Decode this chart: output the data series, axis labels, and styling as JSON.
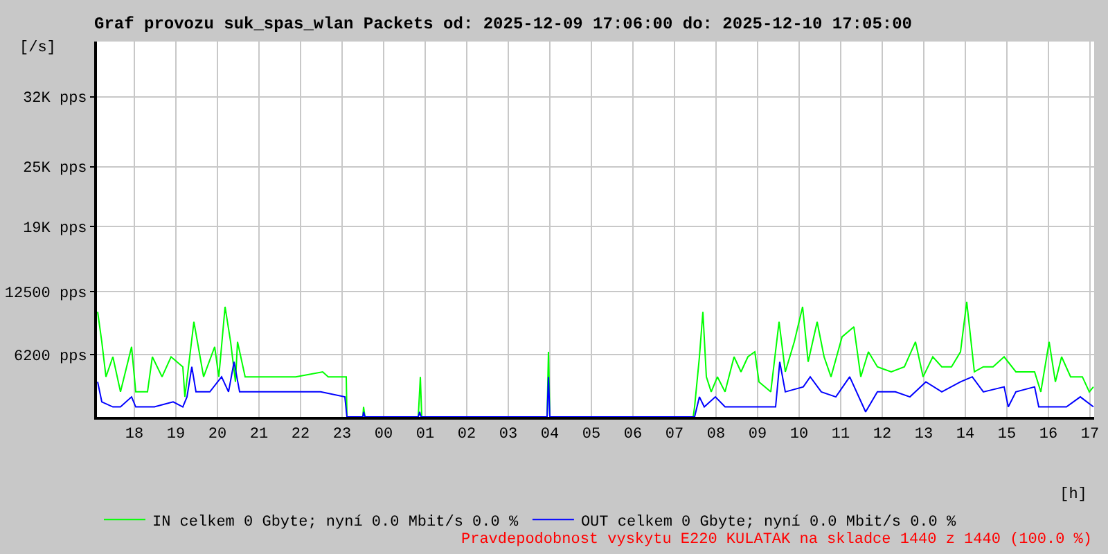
{
  "chart_data": {
    "type": "line",
    "title": "Graf provozu suk_spas_wlan Packets od: 2025-12-09 17:06:00 do: 2025-12-10 17:05:00",
    "xlabel": "[h]",
    "ylabel": "[/s]",
    "xlim": [
      "2025-12-09T17:06",
      "2025-12-10T17:06"
    ],
    "xticks": [
      {
        "value": "2025-12-09T18:00",
        "label": "18"
      },
      {
        "value": "2025-12-09T19:00",
        "label": "19"
      },
      {
        "value": "2025-12-09T20:00",
        "label": "20"
      },
      {
        "value": "2025-12-09T21:00",
        "label": "21"
      },
      {
        "value": "2025-12-09T22:00",
        "label": "22"
      },
      {
        "value": "2025-12-09T23:00",
        "label": "23"
      },
      {
        "value": "2025-12-10T00:00",
        "label": "00"
      },
      {
        "value": "2025-12-10T01:00",
        "label": "01"
      },
      {
        "value": "2025-12-10T02:00",
        "label": "02"
      },
      {
        "value": "2025-12-10T03:00",
        "label": "03"
      },
      {
        "value": "2025-12-10T04:00",
        "label": "04"
      },
      {
        "value": "2025-12-10T05:00",
        "label": "05"
      },
      {
        "value": "2025-12-10T06:00",
        "label": "06"
      },
      {
        "value": "2025-12-10T07:00",
        "label": "07"
      },
      {
        "value": "2025-12-10T08:00",
        "label": "08"
      },
      {
        "value": "2025-12-10T09:00",
        "label": "09"
      },
      {
        "value": "2025-12-10T10:00",
        "label": "10"
      },
      {
        "value": "2025-12-10T11:00",
        "label": "11"
      },
      {
        "value": "2025-12-10T12:00",
        "label": "12"
      },
      {
        "value": "2025-12-10T13:00",
        "label": "13"
      },
      {
        "value": "2025-12-10T14:00",
        "label": "14"
      },
      {
        "value": "2025-12-10T15:00",
        "label": "15"
      },
      {
        "value": "2025-12-10T16:00",
        "label": "16"
      },
      {
        "value": "2025-12-10T17:00",
        "label": "17"
      }
    ],
    "ylim": [
      0,
      37500
    ],
    "yticks": [
      {
        "value": 6200,
        "label": "6200 pps"
      },
      {
        "value": 12500,
        "label": "12500 pps"
      },
      {
        "value": 19000,
        "label": "19K pps"
      },
      {
        "value": 25000,
        "label": "25K pps"
      },
      {
        "value": 32000,
        "label": "32K pps"
      }
    ],
    "grid": true,
    "legend": "bottom",
    "marker": "none",
    "line_style": "solid",
    "series": [
      {
        "name": "IN celkem 0 Gbyte; nyní 0.0 Mbit/s 0.0 %",
        "color": "#00ff00",
        "x": [
          "2025-12-09T17:07",
          "2025-12-09T17:13",
          "2025-12-09T17:19",
          "2025-12-09T17:29",
          "2025-12-09T17:40",
          "2025-12-09T17:56",
          "2025-12-09T18:02",
          "2025-12-09T18:19",
          "2025-12-09T18:26",
          "2025-12-09T18:40",
          "2025-12-09T18:53",
          "2025-12-09T19:10",
          "2025-12-09T19:13",
          "2025-12-09T19:26",
          "2025-12-09T19:40",
          "2025-12-09T19:56",
          "2025-12-09T20:02",
          "2025-12-09T20:11",
          "2025-12-09T20:19",
          "2025-12-09T20:26",
          "2025-12-09T20:29",
          "2025-12-09T20:40",
          "2025-12-09T20:59",
          "2025-12-09T21:26",
          "2025-12-09T21:53",
          "2025-12-09T22:32",
          "2025-12-09T22:40",
          "2025-12-09T23:06",
          "2025-12-09T23:07",
          "2025-12-09T23:30",
          "2025-12-09T23:31",
          "2025-12-09T23:33",
          "2025-12-10T00:50",
          "2025-12-10T00:53",
          "2025-12-10T00:55",
          "2025-12-10T03:56",
          "2025-12-10T03:58",
          "2025-12-10T04:00",
          "2025-12-10T07:27",
          "2025-12-10T07:29",
          "2025-12-10T07:36",
          "2025-12-10T07:41",
          "2025-12-10T07:46",
          "2025-12-10T07:53",
          "2025-12-10T08:02",
          "2025-12-10T08:13",
          "2025-12-10T08:26",
          "2025-12-10T08:36",
          "2025-12-10T08:46",
          "2025-12-10T08:56",
          "2025-12-10T09:02",
          "2025-12-10T09:19",
          "2025-12-10T09:31",
          "2025-12-10T09:40",
          "2025-12-10T09:53",
          "2025-12-10T10:05",
          "2025-12-10T10:13",
          "2025-12-10T10:26",
          "2025-12-10T10:36",
          "2025-12-10T10:46",
          "2025-12-10T11:02",
          "2025-12-10T11:19",
          "2025-12-10T11:29",
          "2025-12-10T11:40",
          "2025-12-10T11:53",
          "2025-12-10T12:13",
          "2025-12-10T12:32",
          "2025-12-10T12:48",
          "2025-12-10T12:59",
          "2025-12-10T13:13",
          "2025-12-10T13:26",
          "2025-12-10T13:40",
          "2025-12-10T13:53",
          "2025-12-10T14:02",
          "2025-12-10T14:13",
          "2025-12-10T14:26",
          "2025-12-10T14:40",
          "2025-12-10T14:56",
          "2025-12-10T15:13",
          "2025-12-10T15:40",
          "2025-12-10T15:49",
          "2025-12-10T16:01",
          "2025-12-10T16:10",
          "2025-12-10T16:19",
          "2025-12-10T16:32",
          "2025-12-10T16:49",
          "2025-12-10T16:59",
          "2025-12-10T17:05"
        ],
        "values": [
          10500,
          7500,
          4000,
          6000,
          2500,
          7000,
          2500,
          2500,
          6000,
          4000,
          6000,
          5000,
          2000,
          9500,
          4000,
          7000,
          4000,
          11000,
          7500,
          3500,
          7500,
          4000,
          4000,
          4000,
          4000,
          4500,
          4000,
          4000,
          0,
          0,
          1000,
          0,
          0,
          4000,
          0,
          0,
          6500,
          0,
          0,
          1000,
          6000,
          10500,
          4000,
          2500,
          4000,
          2500,
          6000,
          4500,
          6000,
          6500,
          3500,
          2500,
          9500,
          4500,
          7500,
          11000,
          5500,
          9500,
          6000,
          4000,
          8000,
          9000,
          4000,
          6500,
          5000,
          4500,
          5000,
          7500,
          4000,
          6000,
          5000,
          5000,
          6500,
          11500,
          4500,
          5000,
          5000,
          6000,
          4500,
          4500,
          2500,
          7500,
          3500,
          6000,
          4000,
          4000,
          2500,
          3000
        ]
      },
      {
        "name": "OUT celkem 0 Gbyte; nyní 0.0 Mbit/s 0.0 %",
        "color": "#0000ff",
        "x": [
          "2025-12-09T17:07",
          "2025-12-09T17:13",
          "2025-12-09T17:29",
          "2025-12-09T17:40",
          "2025-12-09T17:56",
          "2025-12-09T18:02",
          "2025-12-09T18:29",
          "2025-12-09T18:56",
          "2025-12-09T19:10",
          "2025-12-09T19:16",
          "2025-12-09T19:23",
          "2025-12-09T19:29",
          "2025-12-09T19:49",
          "2025-12-09T20:06",
          "2025-12-09T20:16",
          "2025-12-09T20:24",
          "2025-12-09T20:32",
          "2025-12-09T20:56",
          "2025-12-09T21:22",
          "2025-12-09T21:56",
          "2025-12-09T22:29",
          "2025-12-09T23:04",
          "2025-12-09T23:07",
          "2025-12-09T23:30",
          "2025-12-09T23:31",
          "2025-12-09T23:33",
          "2025-12-10T00:50",
          "2025-12-10T00:52",
          "2025-12-10T00:54",
          "2025-12-10T03:56",
          "2025-12-10T03:58",
          "2025-12-10T04:00",
          "2025-12-10T07:29",
          "2025-12-10T07:36",
          "2025-12-10T07:43",
          "2025-12-10T07:59",
          "2025-12-10T08:13",
          "2025-12-10T08:46",
          "2025-12-10T09:26",
          "2025-12-10T09:32",
          "2025-12-10T09:40",
          "2025-12-10T10:06",
          "2025-12-10T10:16",
          "2025-12-10T10:32",
          "2025-12-10T10:53",
          "2025-12-10T11:13",
          "2025-12-10T11:36",
          "2025-12-10T11:53",
          "2025-12-10T12:19",
          "2025-12-10T12:40",
          "2025-12-10T13:03",
          "2025-12-10T13:26",
          "2025-12-10T13:53",
          "2025-12-10T14:10",
          "2025-12-10T14:26",
          "2025-12-10T14:56",
          "2025-12-10T15:02",
          "2025-12-10T15:13",
          "2025-12-10T15:40",
          "2025-12-10T15:46",
          "2025-12-10T16:06",
          "2025-12-10T16:26",
          "2025-12-10T16:46",
          "2025-12-10T17:05"
        ],
        "values": [
          3500,
          1500,
          1000,
          1000,
          2000,
          1000,
          1000,
          1500,
          1000,
          2000,
          5000,
          2500,
          2500,
          4000,
          2500,
          5500,
          2500,
          2500,
          2500,
          2500,
          2500,
          2000,
          0,
          0,
          500,
          0,
          0,
          500,
          0,
          0,
          4000,
          0,
          0,
          2000,
          1000,
          2000,
          1000,
          1000,
          1000,
          5500,
          2500,
          3000,
          4000,
          2500,
          2000,
          4000,
          500,
          2500,
          2500,
          2000,
          3500,
          2500,
          3500,
          4000,
          2500,
          3000,
          1000,
          2500,
          3000,
          1000,
          1000,
          1000,
          2000,
          1000
        ]
      }
    ],
    "annotations": [
      "Pravdepodobnost vyskytu E220 KULATAK na skladce 1440 z 1440 (100.0 %)"
    ]
  }
}
